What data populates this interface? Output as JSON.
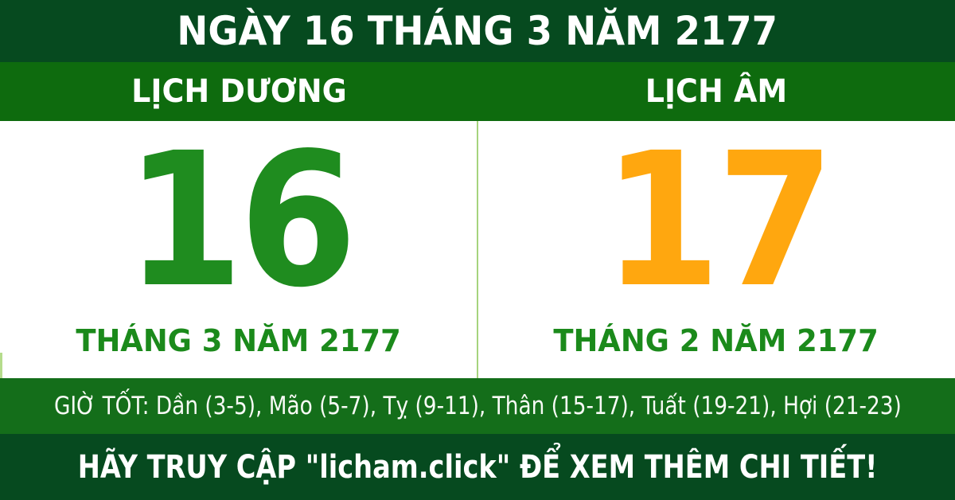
{
  "header": {
    "title": "NGÀY 16 THÁNG 3 NĂM 2177"
  },
  "calendar_tabs": {
    "solar_label": "LỊCH DƯƠNG",
    "lunar_label": "LỊCH ÂM"
  },
  "solar_panel": {
    "day": "16",
    "month_year": "THÁNG 3 NĂM 2177"
  },
  "lunar_panel": {
    "day": "17",
    "month_year": "THÁNG 2 NĂM 2177"
  },
  "good_hours_bar": {
    "text": "GIỜ TỐT: Dần (3-5), Mão (5-7), Tỵ (9-11), Thân (15-17), Tuất (19-21), Hợi (21-23)"
  },
  "footer": {
    "cta_text": "HÃY TRUY CẬP \"licham.click\" ĐỂ XEM THÊM CHI TIẾT!"
  },
  "colors": {
    "dark_green": "#064a1f",
    "bar_green": "#0e6b0e",
    "good_hours_green": "#146e1a",
    "solar_day_green": "#1f8c1f",
    "lunar_day_orange": "#ffa70f",
    "month_text_green": "#1b8a1b",
    "divider_light_green": "#a6d37d",
    "text_white": "#ffffff"
  }
}
